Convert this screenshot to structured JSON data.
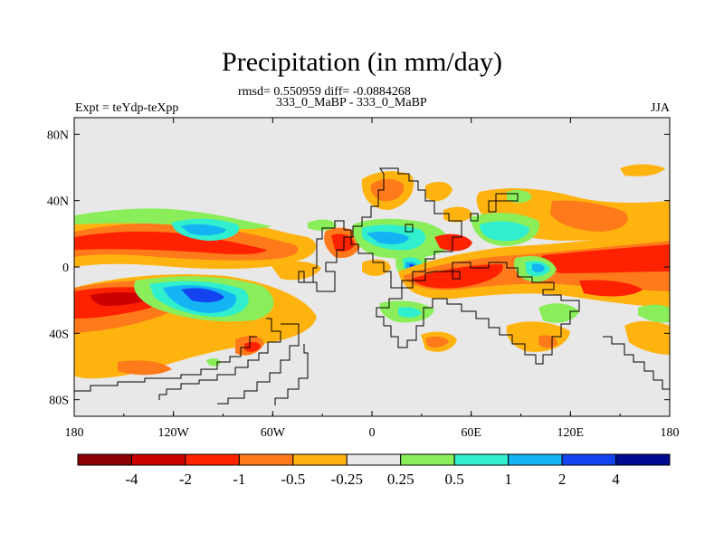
{
  "chart_data": {
    "type": "heatmap",
    "title": "Precipitation (in mm/day)",
    "stats": "rmsd= 0.550959 diff= -0.0884268",
    "subtitle": "333_0_MaBP - 333_0_MaBP",
    "left_label": "Expt = teYdp-teXpp",
    "right_label": "JJA",
    "x_ticks": [
      "180",
      "120W",
      "60W",
      "0",
      "60E",
      "120E",
      "180"
    ],
    "y_ticks": [
      "80N",
      "40N",
      "0",
      "40S",
      "80S"
    ],
    "x_range": [
      -180,
      180
    ],
    "y_range": [
      -90,
      90
    ],
    "colorbar": {
      "labels": [
        "-4",
        "-2",
        "-1",
        "-0.5",
        "-0.25",
        "0.25",
        "0.5",
        "1",
        "2",
        "4"
      ],
      "colors": [
        "#8b0000",
        "#cc0000",
        "#ff2200",
        "#ff7a1a",
        "#ffb30f",
        "#e8e8e8",
        "#8aee5a",
        "#2fefcf",
        "#14b4f4",
        "#1444f0",
        "#000a90"
      ]
    },
    "background_color": "#e8e8e8"
  }
}
